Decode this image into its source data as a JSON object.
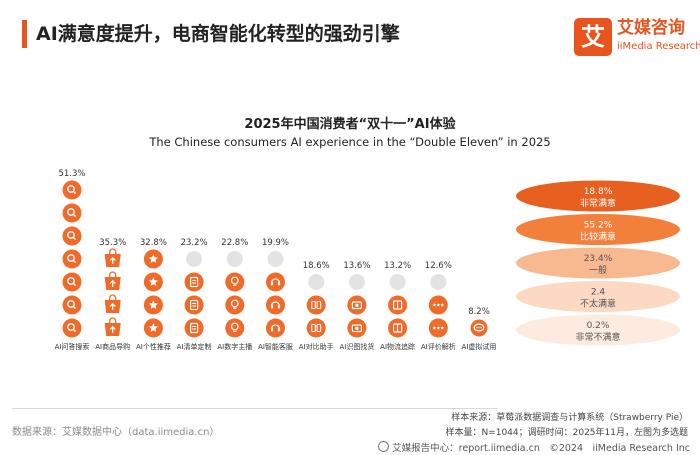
{
  "header": {
    "title": "AI满意度提升，电商智能化转型的强劲引擎",
    "logo_mark": "艾",
    "logo_cn": "艾媒咨询",
    "logo_en": "iiMedia Research"
  },
  "colors": {
    "accent": "#e8541e",
    "pictogram": "#f06a2a",
    "gray_pictogram": "#e3e3e3"
  },
  "chart_data": {
    "type": "bar",
    "title": "2025年中国消费者“双十一”AI体验",
    "subtitle": "The Chinese consumers  AI experience in the “Double Eleven” in 2025",
    "categories": [
      "AI问答搜索",
      "AI商品导购",
      "AI个性推荐",
      "AI清单定制",
      "AI数字主播",
      "AI智能客服",
      "AI对比助手",
      "AI识图找货",
      "AI物流追踪",
      "AI评价解析",
      "AI虚拟试用"
    ],
    "values": [
      51.3,
      35.3,
      32.8,
      23.2,
      22.8,
      19.9,
      18.6,
      13.6,
      13.2,
      12.6,
      8.2
    ],
    "value_labels": [
      "51.3%",
      "35.3%",
      "32.8%",
      "23.2%",
      "22.8%",
      "19.9%",
      "18.6%",
      "13.6%",
      "13.2%",
      "12.6%",
      "8.2%"
    ],
    "icons": [
      "search-bubble-icon",
      "shopping-bag-icon",
      "star-icon",
      "clipboard-icon",
      "bulb-icon",
      "headset-icon",
      "compare-icon",
      "camera-icon",
      "package-icon",
      "rating-icon",
      "chat-icon"
    ],
    "ylim": [
      0,
      55
    ],
    "satisfaction": [
      {
        "value": "18.8%",
        "label": "非常满意",
        "fill": "#e8601f",
        "text": "#ffffff"
      },
      {
        "value": "55.2%",
        "label": "比较满意",
        "fill": "#f2803a",
        "text": "#ffffff"
      },
      {
        "value": "23.4%",
        "label": "一般",
        "fill": "#f8b990",
        "text": "#555555"
      },
      {
        "value": "2.4",
        "label": "不太满意",
        "fill": "#fcd9c3",
        "text": "#555555"
      },
      {
        "value": "0.2%",
        "label": "非常不满意",
        "fill": "#fdebdf",
        "text": "#555555"
      }
    ]
  },
  "source": {
    "left": "数据来源：艾媒数据中心（data.iimedia.cn）",
    "right_line1": "样本来源：草莓派数据调查与计算系统（Strawberry Pie）",
    "right_line2": "样本量：N=1044；调研时间：2025年11月，左图为多选题"
  },
  "footer": {
    "text": "艾媒报告中心：report.iimedia.cn　©2024　iiMedia Research  Inc"
  }
}
